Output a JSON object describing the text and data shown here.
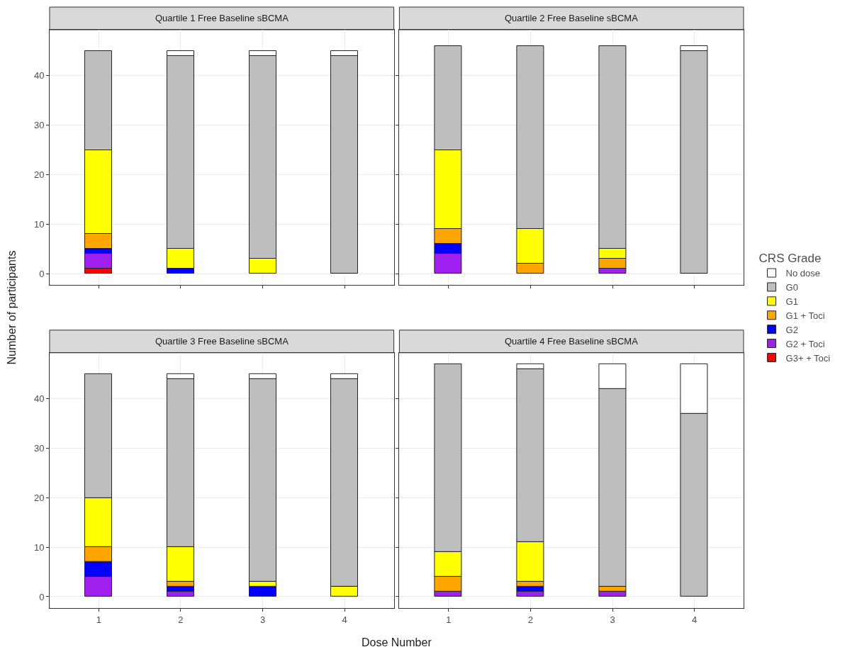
{
  "chart_data": [
    {
      "type": "bar",
      "title": "Quartile 1 Free Baseline sBCMA",
      "xlabel": "Dose Number",
      "ylabel": "Number of participants",
      "legend_title": "CRS Grade",
      "legend": "right",
      "categories": [
        "1",
        "2",
        "3",
        "4"
      ],
      "stacked": true,
      "ylim": [
        -2.3,
        49.3
      ],
      "yticks": [
        0,
        10,
        20,
        30,
        40
      ],
      "grid": true,
      "tick_labels": "y",
      "series": [
        {
          "name": "G3+ + Toci",
          "color": "#ff0000",
          "values": [
            1,
            0,
            0,
            0
          ]
        },
        {
          "name": "G2 + Toci",
          "color": "#a020f0",
          "values": [
            3,
            0,
            0,
            0
          ]
        },
        {
          "name": "G2",
          "color": "#0000ff",
          "values": [
            1,
            1,
            0,
            0
          ]
        },
        {
          "name": "G1 + Toci",
          "color": "#ffa500",
          "values": [
            3,
            0,
            0,
            0
          ]
        },
        {
          "name": "G1",
          "color": "#ffff00",
          "values": [
            17,
            4,
            3,
            0
          ]
        },
        {
          "name": "G0",
          "color": "#bebebe",
          "values": [
            20,
            39,
            41,
            44
          ]
        },
        {
          "name": "No dose",
          "color": "#ffffff",
          "values": [
            0,
            1,
            1,
            1
          ]
        }
      ]
    },
    {
      "type": "bar",
      "title": "Quartile 2 Free Baseline sBCMA",
      "categories": [
        "1",
        "2",
        "3",
        "4"
      ],
      "stacked": true,
      "ylim": [
        -2.3,
        49.3
      ],
      "yticks": [
        0,
        10,
        20,
        30,
        40
      ],
      "grid": true,
      "tick_labels": false,
      "series": [
        {
          "color": "#ff0000",
          "values": [
            0,
            0,
            0,
            0
          ]
        },
        {
          "color": "#a020f0",
          "values": [
            4,
            0,
            1,
            0
          ]
        },
        {
          "color": "#0000ff",
          "values": [
            2,
            0,
            0,
            0
          ]
        },
        {
          "color": "#ffa500",
          "values": [
            3,
            2,
            2,
            0
          ]
        },
        {
          "color": "#ffff00",
          "values": [
            16,
            7,
            2,
            0
          ]
        },
        {
          "color": "#bebebe",
          "values": [
            21,
            37,
            41,
            45
          ]
        },
        {
          "color": "#ffffff",
          "values": [
            0,
            0,
            0,
            1
          ]
        }
      ]
    },
    {
      "type": "bar",
      "title": "Quartile 3 Free Baseline sBCMA",
      "categories": [
        "1",
        "2",
        "3",
        "4"
      ],
      "stacked": true,
      "ylim": [
        -2.3,
        49.3
      ],
      "yticks": [
        0,
        10,
        20,
        30,
        40
      ],
      "grid": true,
      "series": [
        {
          "color": "#ff0000",
          "values": [
            0,
            0,
            0,
            0
          ]
        },
        {
          "color": "#a020f0",
          "values": [
            4,
            1,
            0,
            0
          ]
        },
        {
          "color": "#0000ff",
          "values": [
            3,
            1,
            2,
            0
          ]
        },
        {
          "color": "#ffa500",
          "values": [
            3,
            1,
            0,
            0
          ]
        },
        {
          "color": "#ffff00",
          "values": [
            10,
            7,
            1,
            2
          ]
        },
        {
          "color": "#bebebe",
          "values": [
            25,
            34,
            41,
            42
          ]
        },
        {
          "color": "#ffffff",
          "values": [
            0,
            1,
            1,
            1
          ]
        }
      ]
    },
    {
      "type": "bar",
      "title": "Quartile 4 Free Baseline sBCMA",
      "categories": [
        "1",
        "2",
        "3",
        "4"
      ],
      "stacked": true,
      "ylim": [
        -2.3,
        49.3
      ],
      "yticks": [
        0,
        10,
        20,
        30,
        40
      ],
      "grid": true,
      "tick_labels": "x",
      "series": [
        {
          "color": "#ff0000",
          "values": [
            0,
            0,
            0,
            0
          ]
        },
        {
          "color": "#a020f0",
          "values": [
            1,
            1,
            1,
            0
          ]
        },
        {
          "color": "#0000ff",
          "values": [
            0,
            1,
            0,
            0
          ]
        },
        {
          "color": "#ffa500",
          "values": [
            3,
            1,
            1,
            0
          ]
        },
        {
          "color": "#ffff00",
          "values": [
            5,
            8,
            0,
            0
          ]
        },
        {
          "color": "#bebebe",
          "values": [
            38,
            35,
            40,
            37
          ]
        },
        {
          "color": "#ffffff",
          "values": [
            0,
            1,
            5,
            10
          ]
        }
      ]
    }
  ]
}
